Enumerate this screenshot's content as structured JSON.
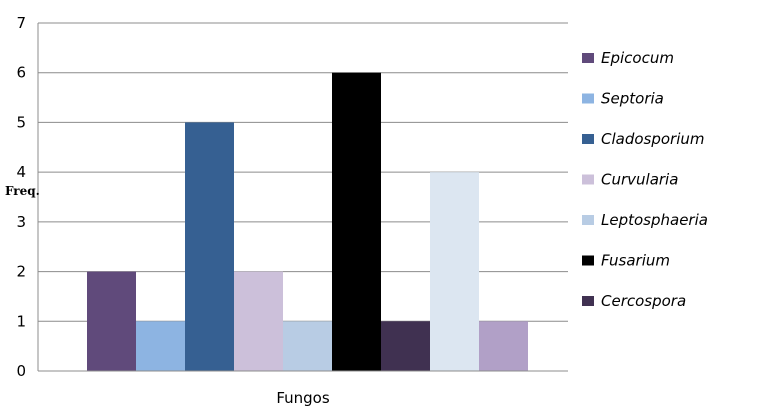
{
  "chart_data": {
    "type": "bar",
    "title": "",
    "xlabel": "Fungos",
    "ylabel": "Freq.",
    "ylim": [
      0,
      7
    ],
    "yticks": [
      0,
      1,
      2,
      3,
      4,
      5,
      6,
      7
    ],
    "grid": true,
    "legend_position": "right",
    "series": [
      {
        "name": "Epicocum",
        "value": 2,
        "color": "#604a7b"
      },
      {
        "name": "Septoria",
        "value": 1,
        "color": "#8db4e2"
      },
      {
        "name": "Cladosporium",
        "value": 5,
        "color": "#366092"
      },
      {
        "name": "Curvularia",
        "value": 2,
        "color": "#ccc0da"
      },
      {
        "name": "Leptosphaeria",
        "value": 1,
        "color": "#b8cce4"
      },
      {
        "name": "Fusarium",
        "value": 6,
        "color": "#000000"
      },
      {
        "name": "Cercospora",
        "value": 1,
        "color": "#403151"
      },
      {
        "name": "",
        "value": 4,
        "color": "#dce6f1"
      },
      {
        "name": "",
        "value": 1,
        "color": "#b1a0c7"
      }
    ]
  }
}
